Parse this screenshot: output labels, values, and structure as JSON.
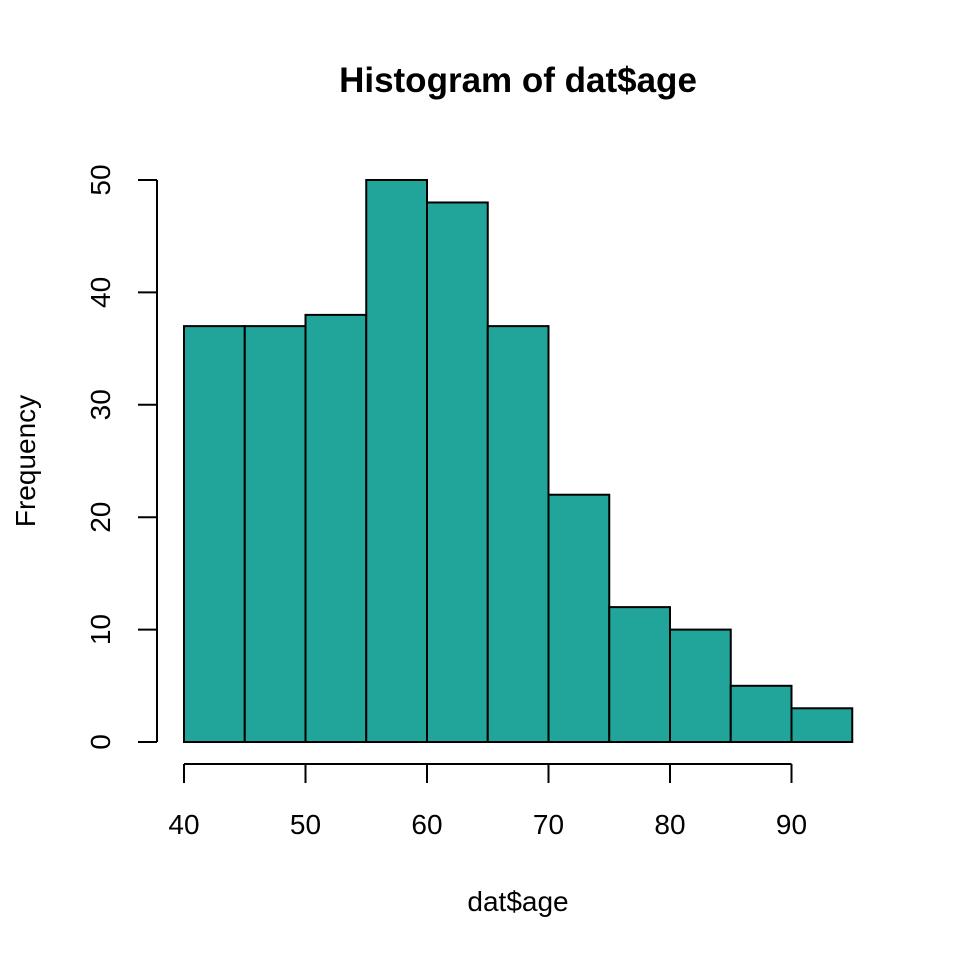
{
  "chart_data": {
    "type": "bar",
    "title": "Histogram of dat$age",
    "xlabel": "dat$age",
    "ylabel": "Frequency",
    "bins": [
      {
        "from": 40,
        "to": 45,
        "count": 37
      },
      {
        "from": 45,
        "to": 50,
        "count": 37
      },
      {
        "from": 50,
        "to": 55,
        "count": 38
      },
      {
        "from": 55,
        "to": 60,
        "count": 50
      },
      {
        "from": 60,
        "to": 65,
        "count": 48
      },
      {
        "from": 65,
        "to": 70,
        "count": 37
      },
      {
        "from": 70,
        "to": 75,
        "count": 22
      },
      {
        "from": 75,
        "to": 80,
        "count": 12
      },
      {
        "from": 80,
        "to": 85,
        "count": 10
      },
      {
        "from": 85,
        "to": 90,
        "count": 5
      },
      {
        "from": 90,
        "to": 95,
        "count": 3
      }
    ],
    "x_ticks": [
      "40",
      "50",
      "60",
      "70",
      "80",
      "90"
    ],
    "y_ticks": [
      "0",
      "10",
      "20",
      "30",
      "40",
      "50"
    ],
    "xlim": [
      40,
      95
    ],
    "ylim": [
      0,
      50
    ],
    "bar_color": "#21a59b",
    "grid": false,
    "legend": "none"
  }
}
